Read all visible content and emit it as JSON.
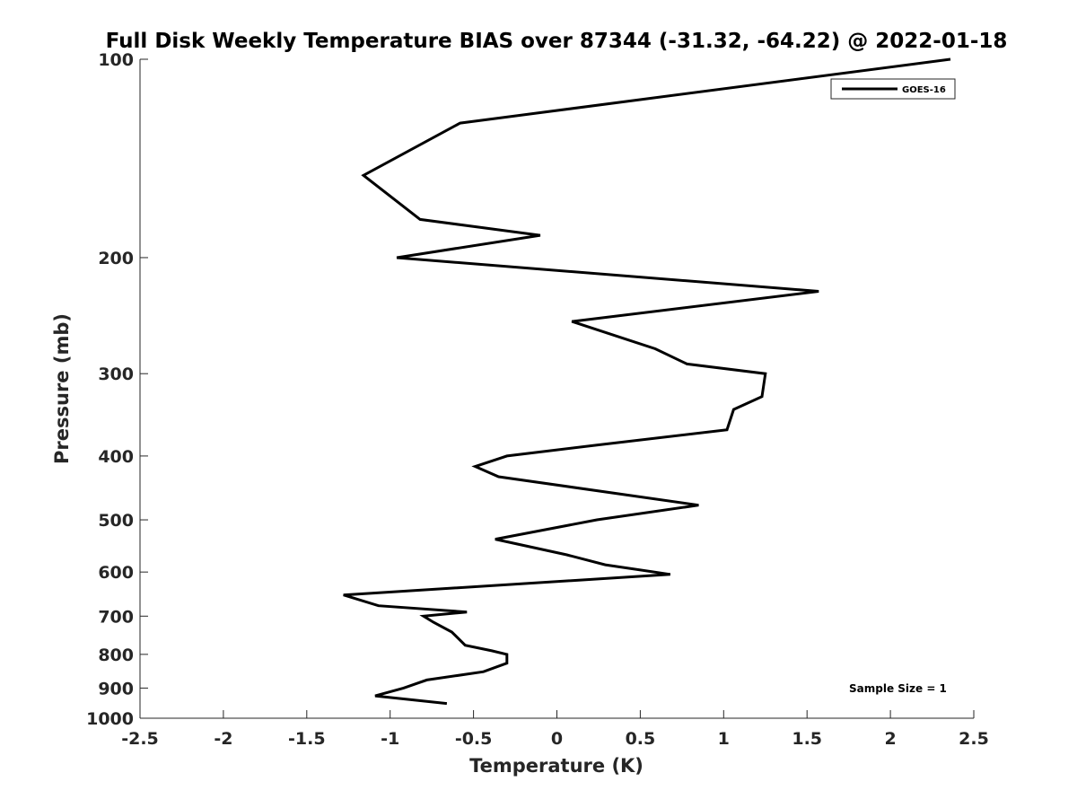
{
  "chart_data": {
    "type": "line",
    "title": "Full Disk Weekly Temperature BIAS over 87344 (-31.32, -64.22) @ 2022-01-18",
    "xlabel": "Temperature (K)",
    "ylabel": "Pressure (mb)",
    "xlim": [
      -2.5,
      2.5
    ],
    "ylim": [
      100,
      1000
    ],
    "y_scale": "log",
    "y_reversed": true,
    "x_ticks": [
      -2.5,
      -2,
      -1.5,
      -1,
      -0.5,
      0,
      0.5,
      1,
      1.5,
      2,
      2.5
    ],
    "x_tick_labels": [
      "-2.5",
      "-2",
      "-1.5",
      "-1",
      "-0.5",
      "0",
      "0.5",
      "1",
      "1.5",
      "2",
      "2.5"
    ],
    "y_ticks": [
      100,
      200,
      300,
      400,
      500,
      600,
      700,
      800,
      900,
      1000
    ],
    "y_tick_labels": [
      "100",
      "200",
      "300",
      "400",
      "500",
      "600",
      "700",
      "800",
      "900",
      "1000"
    ],
    "grid": false,
    "legend_position": "top-right",
    "series": [
      {
        "name": "GOES-16",
        "color": "#000000",
        "x": [
          2.36,
          -0.58,
          -1.16,
          -0.82,
          -0.1,
          -0.96,
          1.57,
          0.09,
          0.59,
          0.78,
          1.25,
          1.23,
          1.06,
          1.02,
          0.24,
          -0.3,
          -0.49,
          -0.35,
          0.85,
          0.24,
          -0.37,
          0.06,
          0.29,
          0.68,
          -1.28,
          -1.07,
          -0.54,
          -0.8,
          -0.74,
          -0.63,
          -0.55,
          -0.39,
          -0.3,
          -0.3,
          -0.44,
          -0.78,
          -0.92,
          -1.09,
          -0.66
        ],
        "y": [
          100,
          125,
          150,
          175,
          185,
          200,
          225,
          250,
          275,
          290,
          300,
          325,
          340,
          365,
          385,
          400,
          415,
          430,
          475,
          500,
          535,
          565,
          585,
          605,
          650,
          675,
          690,
          700,
          715,
          740,
          775,
          790,
          800,
          825,
          850,
          875,
          900,
          925,
          950
        ]
      }
    ],
    "annotations": [
      "Sample Size = 1"
    ]
  }
}
